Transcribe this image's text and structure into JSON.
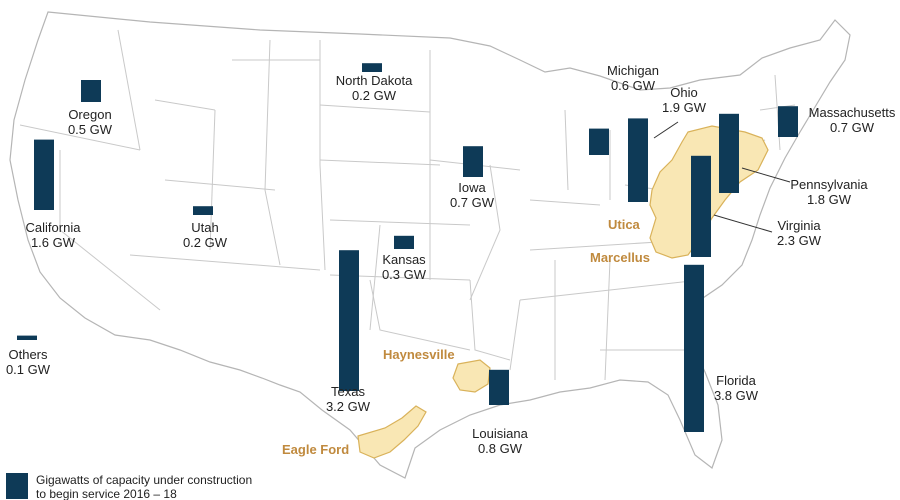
{
  "colors": {
    "bar": "#0e3a57",
    "land": "#ffffff",
    "border": "#c9c9c9",
    "outline": "#b5b5b5",
    "play_fill": "#f9e7b4",
    "play_stroke": "#d9b25a",
    "play_label": "#c08a3e",
    "leader": "#333333"
  },
  "chart_data": {
    "type": "bar",
    "unit": "GW",
    "bars": [
      {
        "name": "Oregon",
        "value": 0.5,
        "label": "Oregon",
        "value_label": "0.5 GW"
      },
      {
        "name": "California",
        "value": 1.6,
        "label": "California",
        "value_label": "1.6 GW"
      },
      {
        "name": "Utah",
        "value": 0.2,
        "label": "Utah",
        "value_label": "0.2 GW"
      },
      {
        "name": "North Dakota",
        "value": 0.2,
        "label": "North Dakota",
        "value_label": "0.2 GW"
      },
      {
        "name": "Kansas",
        "value": 0.3,
        "label": "Kansas",
        "value_label": "0.3 GW"
      },
      {
        "name": "Iowa",
        "value": 0.7,
        "label": "Iowa",
        "value_label": "0.7 GW"
      },
      {
        "name": "Texas",
        "value": 3.2,
        "label": "Texas",
        "value_label": "3.2 GW"
      },
      {
        "name": "Louisiana",
        "value": 0.8,
        "label": "Louisiana",
        "value_label": "0.8 GW"
      },
      {
        "name": "Michigan",
        "value": 0.6,
        "label": "Michigan",
        "value_label": "0.6 GW"
      },
      {
        "name": "Ohio",
        "value": 1.9,
        "label": "Ohio",
        "value_label": "1.9 GW"
      },
      {
        "name": "Pennsylvania",
        "value": 1.8,
        "label": "Pennsylvania",
        "value_label": "1.8 GW"
      },
      {
        "name": "Virginia",
        "value": 2.3,
        "label": "Virginia",
        "value_label": "2.3 GW"
      },
      {
        "name": "Massachusetts",
        "value": 0.7,
        "label": "Massachusetts",
        "value_label": "0.7 GW"
      },
      {
        "name": "Florida",
        "value": 3.8,
        "label": "Florida",
        "value_label": "3.8 GW"
      },
      {
        "name": "Others",
        "value": 0.1,
        "label": "Others",
        "value_label": "0.1 GW"
      }
    ],
    "shale_plays": [
      "Utica",
      "Marcellus",
      "Haynesville",
      "Eagle Ford"
    ],
    "legend": {
      "line1": "Gigawatts of capacity under construction",
      "line2": "to begin service 2016 – 18"
    }
  }
}
